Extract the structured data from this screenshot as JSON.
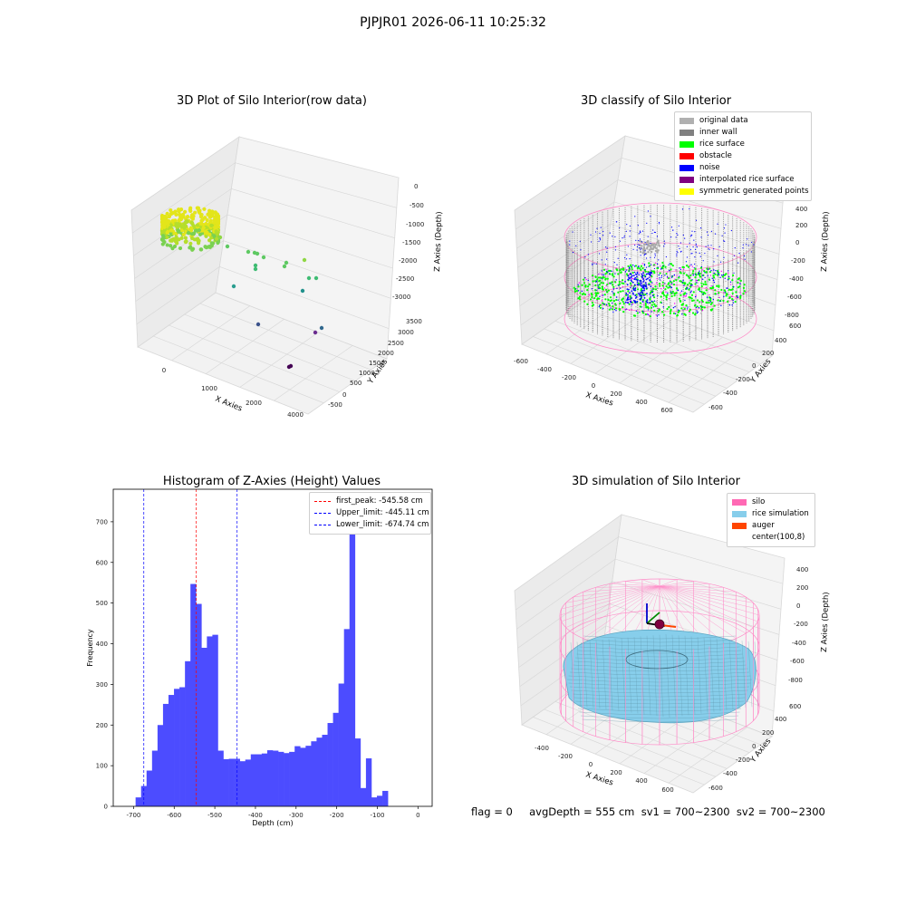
{
  "suptitle": "PJPJR01 2026-06-11 10:25:32",
  "footer": "flag = 0     avgDepth = 555 cm  sv1 = 700~2300  sv2 = 700~2300",
  "chart_data": [
    {
      "type": "scatter",
      "title": "3D Plot of Silo Interior(row data)",
      "xlabel": "X Axies",
      "ylabel": "Y Axies",
      "zlabel": "Z Axies (Depth)",
      "x_ticks": [
        "0",
        "1000",
        "2000",
        "3000",
        "4000"
      ],
      "y_ticks": [
        "3500",
        "3000",
        "2500",
        "2000",
        "1500",
        "1000",
        "500",
        "0",
        "-500"
      ],
      "z_ticks": [
        "0",
        "-500",
        "-1000",
        "-1500",
        "-2000",
        "-2500",
        "-3000"
      ],
      "colormap": "viridis"
    },
    {
      "type": "scatter",
      "title": "3D classify of Silo Interior",
      "xlabel": "X Axies",
      "ylabel": "Y Axies",
      "zlabel": "Z Axies (Depth)",
      "x_ticks": [
        "-600",
        "-400",
        "-200",
        "0",
        "200",
        "400",
        "600"
      ],
      "y_ticks": [
        "600",
        "400",
        "200",
        "0",
        "-200",
        "-400",
        "-600"
      ],
      "z_ticks": [
        "400",
        "200",
        "0",
        "-200",
        "-400",
        "-600",
        "-800"
      ],
      "legend": [
        {
          "label": "original data",
          "color": "#b0b0b0"
        },
        {
          "label": "inner wall",
          "color": "#808080"
        },
        {
          "label": "rice surface",
          "color": "#00ff00"
        },
        {
          "label": "obstacle",
          "color": "#ff0000"
        },
        {
          "label": "noise",
          "color": "#0000ff"
        },
        {
          "label": "interpolated rice surface",
          "color": "#800080"
        },
        {
          "label": "symmetric generated points",
          "color": "#ffff00"
        }
      ],
      "legend_position": "top-right"
    },
    {
      "type": "bar",
      "title": "Histogram of Z-Axies (Height) Values",
      "xlabel": "Depth (cm)",
      "ylabel": "Frequency",
      "bin_start": -695,
      "bin_width": 13.5,
      "values": [
        22,
        50,
        88,
        137,
        200,
        252,
        274,
        289,
        293,
        357,
        547,
        498,
        390,
        418,
        422,
        137,
        116,
        117,
        117,
        111,
        115,
        128,
        128,
        130,
        138,
        137,
        134,
        131,
        134,
        148,
        144,
        149,
        160,
        169,
        176,
        205,
        230,
        302,
        436,
        740,
        167,
        45,
        118,
        22,
        26,
        38
      ],
      "xlim": [
        -750,
        35
      ],
      "ylim": [
        0,
        780
      ],
      "x_ticks": [
        "-700",
        "-600",
        "-500",
        "-400",
        "-300",
        "-200",
        "-100",
        "0"
      ],
      "y_ticks": [
        "0",
        "100",
        "200",
        "300",
        "400",
        "500",
        "600",
        "700"
      ],
      "bar_color": "#4c4cff",
      "vlines": [
        {
          "label": "first_peak: -545.58 cm",
          "x": -545.58,
          "color": "#ff0000"
        },
        {
          "label": "Upper_limit: -445.11 cm",
          "x": -445.11,
          "color": "#0000ff"
        },
        {
          "label": "Lower_limit: -674.74 cm",
          "x": -674.74,
          "color": "#0000ff"
        }
      ],
      "legend_position": "top-right"
    },
    {
      "type": "area",
      "title": "3D simulation of Silo Interior",
      "xlabel": "X Axies",
      "ylabel": "Y Axies",
      "zlabel": "Z Axies (Depth)",
      "x_ticks": [
        "-400",
        "-200",
        "0",
        "200",
        "400",
        "600"
      ],
      "y_ticks": [
        "600",
        "400",
        "200",
        "0",
        "-200",
        "-400",
        "-600"
      ],
      "z_ticks": [
        "400",
        "200",
        "0",
        "-200",
        "-400",
        "-600",
        "-800"
      ],
      "legend": [
        {
          "label": "silo",
          "color": "#ff69b4"
        },
        {
          "label": "rice simulation",
          "color": "#87ceeb"
        },
        {
          "label": "auger",
          "color": "#ff4500"
        },
        {
          "label": "center(100,8)",
          "color": "#ffffff"
        }
      ],
      "legend_position": "top-right"
    }
  ]
}
